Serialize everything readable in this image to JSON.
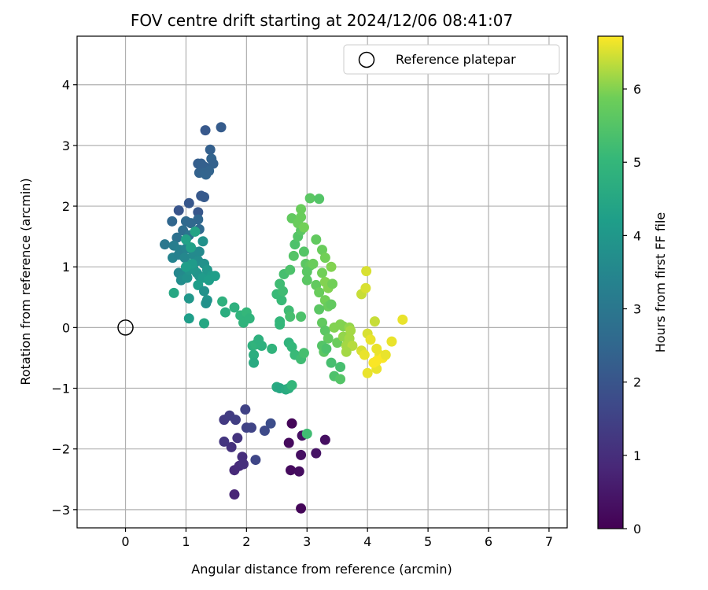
{
  "chart_data": {
    "type": "scatter",
    "title": "FOV centre drift starting at 2024/12/06 08:41:07",
    "xlabel": "Angular distance from reference (arcmin)",
    "ylabel": "Rotation from reference (arcmin)",
    "xlim": [
      -0.8,
      7.3
    ],
    "ylim": [
      -3.3,
      4.8
    ],
    "xticks": [
      0,
      1,
      2,
      3,
      4,
      5,
      6,
      7
    ],
    "yticks": [
      -3,
      -2,
      -1,
      0,
      1,
      2,
      3,
      4
    ],
    "xtick_labels": [
      "0",
      "1",
      "2",
      "3",
      "4",
      "5",
      "6",
      "7"
    ],
    "ytick_labels": [
      "−3",
      "−2",
      "−1",
      "0",
      "1",
      "2",
      "3",
      "4"
    ],
    "grid": true,
    "legend": {
      "placement": "top-right",
      "entries": [
        "Reference platepar"
      ]
    },
    "reference": {
      "name": "Reference platepar",
      "x": 0,
      "y": 0
    },
    "colorbar": {
      "label": "Hours from first FF file",
      "colormap": "viridis",
      "range": [
        0,
        6.72
      ],
      "ticks": [
        0,
        1,
        2,
        3,
        4,
        5,
        6
      ],
      "tick_labels": [
        "0",
        "1",
        "2",
        "3",
        "4",
        "5",
        "6"
      ]
    },
    "series": [
      {
        "values": [
          {
            "x": 2.75,
            "y": -1.58,
            "h": 0.1
          },
          {
            "x": 2.9,
            "y": -2.98,
            "h": 0.1
          },
          {
            "x": 2.7,
            "y": -1.9,
            "h": 0.2
          },
          {
            "x": 2.73,
            "y": -2.35,
            "h": 0.2
          },
          {
            "x": 2.87,
            "y": -2.37,
            "h": 0.25
          },
          {
            "x": 2.9,
            "y": -2.1,
            "h": 0.3
          },
          {
            "x": 2.92,
            "y": -1.78,
            "h": 0.35
          },
          {
            "x": 3.15,
            "y": -2.07,
            "h": 0.4
          },
          {
            "x": 3.3,
            "y": -1.85,
            "h": 0.3
          },
          {
            "x": 1.8,
            "y": -2.75,
            "h": 0.8
          },
          {
            "x": 1.8,
            "y": -2.35,
            "h": 0.9
          },
          {
            "x": 1.88,
            "y": -2.28,
            "h": 0.95
          },
          {
            "x": 1.93,
            "y": -2.13,
            "h": 1.0
          },
          {
            "x": 1.95,
            "y": -2.25,
            "h": 1.05
          },
          {
            "x": 1.75,
            "y": -1.97,
            "h": 1.1
          },
          {
            "x": 1.85,
            "y": -1.82,
            "h": 1.15
          },
          {
            "x": 1.63,
            "y": -1.88,
            "h": 1.2
          },
          {
            "x": 1.63,
            "y": -1.52,
            "h": 1.3
          },
          {
            "x": 1.72,
            "y": -1.45,
            "h": 1.35
          },
          {
            "x": 1.82,
            "y": -1.52,
            "h": 1.4
          },
          {
            "x": 1.98,
            "y": -1.35,
            "h": 1.5
          },
          {
            "x": 2.0,
            "y": -1.65,
            "h": 1.5
          },
          {
            "x": 2.08,
            "y": -1.65,
            "h": 1.55
          },
          {
            "x": 2.15,
            "y": -2.18,
            "h": 1.6
          },
          {
            "x": 2.3,
            "y": -1.7,
            "h": 1.7
          },
          {
            "x": 2.4,
            "y": -1.58,
            "h": 1.8
          },
          {
            "x": 1.58,
            "y": 3.3,
            "h": 2.2
          },
          {
            "x": 1.32,
            "y": 3.25,
            "h": 2.1
          },
          {
            "x": 1.4,
            "y": 2.93,
            "h": 2.3
          },
          {
            "x": 1.42,
            "y": 2.78,
            "h": 2.4
          },
          {
            "x": 1.45,
            "y": 2.7,
            "h": 2.35
          },
          {
            "x": 1.2,
            "y": 2.7,
            "h": 2.25
          },
          {
            "x": 1.25,
            "y": 2.7,
            "h": 2.3
          },
          {
            "x": 1.3,
            "y": 2.65,
            "h": 2.3
          },
          {
            "x": 1.22,
            "y": 2.55,
            "h": 2.35
          },
          {
            "x": 1.3,
            "y": 2.55,
            "h": 2.4
          },
          {
            "x": 1.33,
            "y": 2.52,
            "h": 2.45
          },
          {
            "x": 1.38,
            "y": 2.58,
            "h": 2.4
          },
          {
            "x": 1.25,
            "y": 2.17,
            "h": 2.1
          },
          {
            "x": 1.3,
            "y": 2.15,
            "h": 2.15
          },
          {
            "x": 1.05,
            "y": 2.05,
            "h": 2.05
          },
          {
            "x": 0.88,
            "y": 1.93,
            "h": 2.0
          },
          {
            "x": 1.2,
            "y": 1.9,
            "h": 2.05
          },
          {
            "x": 0.77,
            "y": 1.75,
            "h": 2.5
          },
          {
            "x": 1.2,
            "y": 1.78,
            "h": 2.5
          },
          {
            "x": 1.0,
            "y": 1.75,
            "h": 2.6
          },
          {
            "x": 1.08,
            "y": 1.72,
            "h": 2.55
          },
          {
            "x": 0.95,
            "y": 1.6,
            "h": 2.7
          },
          {
            "x": 1.22,
            "y": 1.62,
            "h": 2.6
          },
          {
            "x": 0.85,
            "y": 1.48,
            "h": 2.8
          },
          {
            "x": 1.05,
            "y": 1.52,
            "h": 2.9
          },
          {
            "x": 0.65,
            "y": 1.37,
            "h": 3.0
          },
          {
            "x": 0.8,
            "y": 1.35,
            "h": 3.2
          },
          {
            "x": 0.9,
            "y": 1.28,
            "h": 3.3
          },
          {
            "x": 1.0,
            "y": 1.3,
            "h": 3.4
          },
          {
            "x": 1.1,
            "y": 1.28,
            "h": 3.5
          },
          {
            "x": 0.78,
            "y": 1.15,
            "h": 3.4
          },
          {
            "x": 0.88,
            "y": 1.2,
            "h": 3.3
          },
          {
            "x": 0.98,
            "y": 1.15,
            "h": 3.5
          },
          {
            "x": 1.12,
            "y": 1.2,
            "h": 3.6
          },
          {
            "x": 1.22,
            "y": 1.25,
            "h": 3.6
          },
          {
            "x": 1.28,
            "y": 1.42,
            "h": 3.8
          },
          {
            "x": 1.2,
            "y": 1.1,
            "h": 3.7
          },
          {
            "x": 1.3,
            "y": 1.05,
            "h": 3.8
          },
          {
            "x": 0.88,
            "y": 0.9,
            "h": 3.5
          },
          {
            "x": 0.95,
            "y": 0.85,
            "h": 3.6
          },
          {
            "x": 0.92,
            "y": 0.78,
            "h": 3.7
          },
          {
            "x": 1.02,
            "y": 0.82,
            "h": 3.8
          },
          {
            "x": 1.05,
            "y": 0.95,
            "h": 3.9
          },
          {
            "x": 1.12,
            "y": 0.98,
            "h": 4.0
          },
          {
            "x": 1.18,
            "y": 0.9,
            "h": 4.0
          },
          {
            "x": 1.22,
            "y": 0.85,
            "h": 3.9
          },
          {
            "x": 1.28,
            "y": 0.82,
            "h": 4.1
          },
          {
            "x": 1.35,
            "y": 0.95,
            "h": 4.0
          },
          {
            "x": 1.42,
            "y": 0.85,
            "h": 4.1
          },
          {
            "x": 1.38,
            "y": 0.78,
            "h": 4.2
          },
          {
            "x": 1.48,
            "y": 0.85,
            "h": 4.2
          },
          {
            "x": 1.1,
            "y": 1.05,
            "h": 4.1
          },
          {
            "x": 1.0,
            "y": 1.0,
            "h": 4.2
          },
          {
            "x": 1.2,
            "y": 0.7,
            "h": 4.2
          },
          {
            "x": 1.05,
            "y": 0.48,
            "h": 4.0
          },
          {
            "x": 1.3,
            "y": 0.6,
            "h": 3.8
          },
          {
            "x": 1.35,
            "y": 0.45,
            "h": 3.9
          },
          {
            "x": 1.33,
            "y": 0.4,
            "h": 3.8
          },
          {
            "x": 1.0,
            "y": 1.45,
            "h": 4.3
          },
          {
            "x": 1.08,
            "y": 1.32,
            "h": 4.3
          },
          {
            "x": 1.15,
            "y": 1.58,
            "h": 4.4
          },
          {
            "x": 0.8,
            "y": 0.57,
            "h": 4.5
          },
          {
            "x": 1.05,
            "y": 0.15,
            "h": 4.2
          },
          {
            "x": 1.3,
            "y": 0.07,
            "h": 4.5
          },
          {
            "x": 1.6,
            "y": 0.43,
            "h": 4.8
          },
          {
            "x": 1.65,
            "y": 0.25,
            "h": 4.7
          },
          {
            "x": 1.8,
            "y": 0.33,
            "h": 4.8
          },
          {
            "x": 1.9,
            "y": 0.2,
            "h": 4.9
          },
          {
            "x": 1.95,
            "y": 0.08,
            "h": 4.9
          },
          {
            "x": 2.0,
            "y": 0.25,
            "h": 5.0
          },
          {
            "x": 2.05,
            "y": 0.15,
            "h": 4.9
          },
          {
            "x": 2.1,
            "y": -0.3,
            "h": 4.8
          },
          {
            "x": 2.15,
            "y": -0.28,
            "h": 4.9
          },
          {
            "x": 2.2,
            "y": -0.2,
            "h": 4.8
          },
          {
            "x": 2.12,
            "y": -0.45,
            "h": 4.7
          },
          {
            "x": 2.12,
            "y": -0.58,
            "h": 4.6
          },
          {
            "x": 2.25,
            "y": -0.3,
            "h": 4.8
          },
          {
            "x": 2.42,
            "y": -0.35,
            "h": 4.9
          },
          {
            "x": 2.5,
            "y": -0.98,
            "h": 4.6
          },
          {
            "x": 2.55,
            "y": -1.0,
            "h": 4.5
          },
          {
            "x": 2.65,
            "y": -1.02,
            "h": 4.6
          },
          {
            "x": 2.7,
            "y": -1.0,
            "h": 4.7
          },
          {
            "x": 2.55,
            "y": 0.1,
            "h": 5.0
          },
          {
            "x": 2.55,
            "y": 0.05,
            "h": 5.0
          },
          {
            "x": 2.58,
            "y": 0.45,
            "h": 5.1
          },
          {
            "x": 2.5,
            "y": 0.55,
            "h": 5.1
          },
          {
            "x": 2.6,
            "y": 0.6,
            "h": 5.2
          },
          {
            "x": 2.55,
            "y": 0.72,
            "h": 5.2
          },
          {
            "x": 2.62,
            "y": 0.88,
            "h": 5.3
          },
          {
            "x": 2.7,
            "y": 0.28,
            "h": 5.2
          },
          {
            "x": 2.72,
            "y": 0.18,
            "h": 5.3
          },
          {
            "x": 2.7,
            "y": -0.25,
            "h": 4.9
          },
          {
            "x": 2.75,
            "y": -0.32,
            "h": 5.0
          },
          {
            "x": 2.8,
            "y": -0.45,
            "h": 5.1
          },
          {
            "x": 2.9,
            "y": -0.52,
            "h": 5.2
          },
          {
            "x": 2.9,
            "y": 0.18,
            "h": 5.4
          },
          {
            "x": 2.95,
            "y": -0.42,
            "h": 5.3
          },
          {
            "x": 2.72,
            "y": 0.95,
            "h": 5.4
          },
          {
            "x": 2.78,
            "y": 1.18,
            "h": 5.5
          },
          {
            "x": 2.8,
            "y": 1.37,
            "h": 5.4
          },
          {
            "x": 2.85,
            "y": 1.5,
            "h": 5.5
          },
          {
            "x": 2.9,
            "y": 1.6,
            "h": 5.6
          },
          {
            "x": 2.95,
            "y": 1.25,
            "h": 5.5
          },
          {
            "x": 2.98,
            "y": 1.05,
            "h": 5.6
          },
          {
            "x": 3.05,
            "y": 1.02,
            "h": 5.7
          },
          {
            "x": 3.0,
            "y": 0.92,
            "h": 5.6
          },
          {
            "x": 2.75,
            "y": 1.8,
            "h": 5.7
          },
          {
            "x": 2.9,
            "y": 1.95,
            "h": 5.8
          },
          {
            "x": 3.05,
            "y": 2.13,
            "h": 5.6
          },
          {
            "x": 3.2,
            "y": 2.12,
            "h": 5.5
          },
          {
            "x": 2.85,
            "y": 1.72,
            "h": 5.8
          },
          {
            "x": 2.9,
            "y": 1.82,
            "h": 5.8
          },
          {
            "x": 2.95,
            "y": 1.65,
            "h": 5.9
          },
          {
            "x": 3.15,
            "y": 1.45,
            "h": 5.7
          },
          {
            "x": 3.25,
            "y": 1.28,
            "h": 5.8
          },
          {
            "x": 3.3,
            "y": 1.15,
            "h": 5.9
          },
          {
            "x": 3.1,
            "y": 1.05,
            "h": 5.8
          },
          {
            "x": 3.15,
            "y": 0.7,
            "h": 5.7
          },
          {
            "x": 3.0,
            "y": 0.78,
            "h": 5.6
          },
          {
            "x": 3.2,
            "y": 0.58,
            "h": 5.8
          },
          {
            "x": 3.25,
            "y": 0.9,
            "h": 5.9
          },
          {
            "x": 3.3,
            "y": 0.75,
            "h": 6.0
          },
          {
            "x": 3.35,
            "y": 0.65,
            "h": 6.0
          },
          {
            "x": 3.3,
            "y": 0.45,
            "h": 5.9
          },
          {
            "x": 3.35,
            "y": 0.35,
            "h": 5.8
          },
          {
            "x": 3.4,
            "y": 1.0,
            "h": 6.0
          },
          {
            "x": 3.42,
            "y": 0.72,
            "h": 5.9
          },
          {
            "x": 3.4,
            "y": 0.38,
            "h": 5.7
          },
          {
            "x": 3.2,
            "y": 0.3,
            "h": 5.6
          },
          {
            "x": 3.25,
            "y": 0.08,
            "h": 5.7
          },
          {
            "x": 3.3,
            "y": -0.05,
            "h": 5.6
          },
          {
            "x": 3.35,
            "y": -0.18,
            "h": 5.7
          },
          {
            "x": 3.25,
            "y": -0.3,
            "h": 5.5
          },
          {
            "x": 3.28,
            "y": -0.4,
            "h": 5.6
          },
          {
            "x": 3.32,
            "y": -0.35,
            "h": 5.4
          },
          {
            "x": 3.4,
            "y": -0.58,
            "h": 5.3
          },
          {
            "x": 3.45,
            "y": -0.8,
            "h": 5.4
          },
          {
            "x": 3.55,
            "y": -0.85,
            "h": 5.5
          },
          {
            "x": 3.55,
            "y": -0.65,
            "h": 5.3
          },
          {
            "x": 3.5,
            "y": -0.25,
            "h": 5.8
          },
          {
            "x": 3.45,
            "y": 0.0,
            "h": 6.0
          },
          {
            "x": 3.55,
            "y": 0.05,
            "h": 6.0
          },
          {
            "x": 3.6,
            "y": -0.15,
            "h": 6.1
          },
          {
            "x": 3.65,
            "y": -0.3,
            "h": 6.2
          },
          {
            "x": 3.6,
            "y": 0.02,
            "h": 6.0
          },
          {
            "x": 3.7,
            "y": 0.0,
            "h": 6.1
          },
          {
            "x": 3.72,
            "y": -0.05,
            "h": 6.2
          },
          {
            "x": 3.7,
            "y": -0.18,
            "h": 6.2
          },
          {
            "x": 3.75,
            "y": -0.3,
            "h": 6.3
          },
          {
            "x": 3.65,
            "y": -0.4,
            "h": 6.2
          },
          {
            "x": 3.0,
            "y": -1.75,
            "h": 5.2
          },
          {
            "x": 2.75,
            "y": -0.95,
            "h": 5.0
          },
          {
            "x": 3.9,
            "y": 0.55,
            "h": 6.4
          },
          {
            "x": 3.97,
            "y": 0.65,
            "h": 6.5
          },
          {
            "x": 3.98,
            "y": 0.93,
            "h": 6.5
          },
          {
            "x": 3.9,
            "y": -0.38,
            "h": 6.5
          },
          {
            "x": 3.95,
            "y": -0.45,
            "h": 6.6
          },
          {
            "x": 4.0,
            "y": -0.1,
            "h": 6.5
          },
          {
            "x": 4.05,
            "y": -0.2,
            "h": 6.6
          },
          {
            "x": 4.0,
            "y": -0.75,
            "h": 6.6
          },
          {
            "x": 4.15,
            "y": -0.68,
            "h": 6.6
          },
          {
            "x": 4.12,
            "y": 0.1,
            "h": 6.4
          },
          {
            "x": 4.15,
            "y": -0.35,
            "h": 6.6
          },
          {
            "x": 4.2,
            "y": -0.45,
            "h": 6.6
          },
          {
            "x": 4.25,
            "y": -0.5,
            "h": 6.7
          },
          {
            "x": 4.3,
            "y": -0.45,
            "h": 6.6
          },
          {
            "x": 4.15,
            "y": -0.55,
            "h": 6.7
          },
          {
            "x": 4.4,
            "y": -0.23,
            "h": 6.6
          },
          {
            "x": 4.58,
            "y": 0.13,
            "h": 6.6
          },
          {
            "x": 4.1,
            "y": -0.58,
            "h": 6.7
          }
        ]
      }
    ]
  }
}
